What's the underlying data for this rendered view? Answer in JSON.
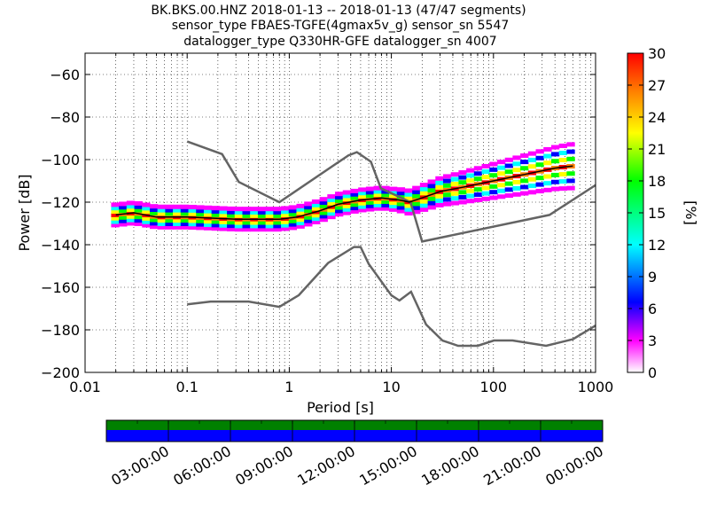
{
  "title_lines": [
    "BK.BKS.00.HNZ   2018-01-13 -- 2018-01-13  (47/47 segments)",
    "sensor_type FBAES-TGFE(4gmax5v_g) sensor_sn 5547",
    "datalogger_type Q330HR-GFE datalogger_sn 4007"
  ],
  "chart_data": {
    "type": "heatmap",
    "xlabel": "Period [s]",
    "ylabel": "Power [dB]",
    "xscale": "log",
    "xlim": [
      0.01,
      1000
    ],
    "ylim": [
      -200,
      -50
    ],
    "x_ticks": [
      "0.01",
      "0.1",
      "1",
      "10",
      "100",
      "1000"
    ],
    "y_ticks": [
      "−200",
      "−180",
      "−160",
      "−140",
      "−120",
      "−100",
      "−80",
      "−60"
    ],
    "grid": "dotted",
    "colorbar": {
      "label": "[%]",
      "range": [
        0,
        30
      ],
      "ticks": [
        "0",
        "3",
        "6",
        "9",
        "12",
        "15",
        "18",
        "21",
        "24",
        "27",
        "30"
      ]
    },
    "noise_models": [
      {
        "name": "high_noise_model",
        "x": [
          0.1,
          0.22,
          0.32,
          0.8,
          3.8,
          4.6,
          6.3,
          7.9,
          15.4,
          20,
          354,
          1000
        ],
        "y": [
          -91.5,
          -97.4,
          -110.5,
          -120,
          -98,
          -96.5,
          -101,
          -113.5,
          -120,
          -138.5,
          -126,
          -112
        ]
      },
      {
        "name": "low_noise_model",
        "x": [
          0.1,
          0.17,
          0.4,
          0.8,
          1.24,
          2.4,
          4.3,
          5,
          6,
          10,
          12,
          15.6,
          21.9,
          31.6,
          45,
          70,
          101,
          154,
          328,
          600,
          1000
        ],
        "y": [
          -168,
          -166.7,
          -166.7,
          -169.2,
          -163.7,
          -148.6,
          -141.1,
          -141.1,
          -149,
          -163.8,
          -166.2,
          -162.1,
          -177.5,
          -185,
          -187.5,
          -187.5,
          -185,
          -185,
          -187.5,
          -184.4,
          -178
        ]
      }
    ],
    "median": {
      "x": [
        0.02,
        0.03,
        0.05,
        0.1,
        0.3,
        0.8,
        1.2,
        2,
        3,
        5,
        8,
        12,
        15,
        20,
        30,
        50,
        100,
        200,
        400,
        600
      ],
      "y": [
        -126,
        -125,
        -127,
        -127,
        -128,
        -128,
        -127,
        -124,
        -121,
        -119,
        -118,
        -119,
        -120,
        -118,
        -115,
        -113,
        -110,
        -107,
        -104,
        -103
      ]
    },
    "timeline": {
      "tick_labels": [
        "03:00:00",
        "06:00:00",
        "09:00:00",
        "12:00:00",
        "15:00:00",
        "18:00:00",
        "21:00:00",
        "00:00:00"
      ],
      "data_color": "#008000",
      "psd_color": "#0000ff"
    },
    "colors": {
      "model_line": "#646464",
      "median_line": "#000000"
    }
  }
}
